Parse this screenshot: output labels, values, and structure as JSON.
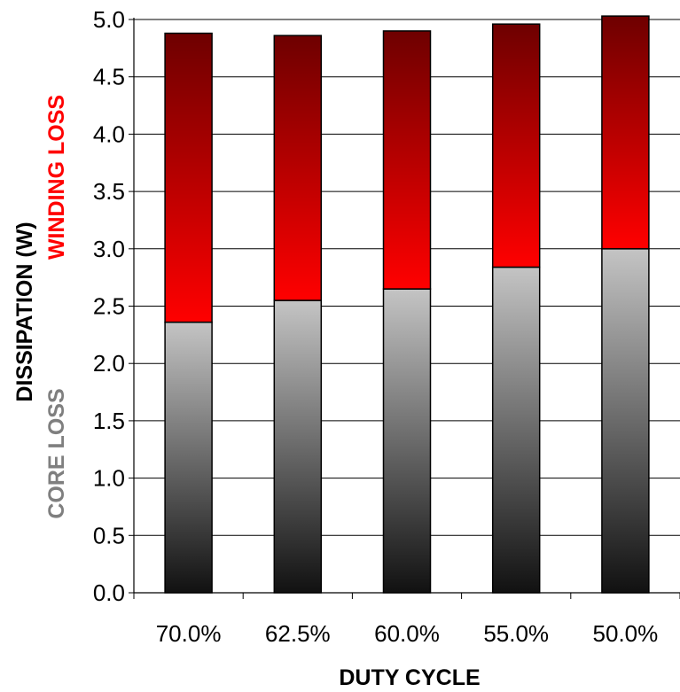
{
  "chart_data": {
    "type": "bar",
    "stacked": true,
    "categories": [
      "70.0%",
      "62.5%",
      "60.0%",
      "55.0%",
      "50.0%"
    ],
    "series": [
      {
        "name": "CORE LOSS",
        "values": [
          2.36,
          2.55,
          2.65,
          2.84,
          3.0
        ]
      },
      {
        "name": "WINDING LOSS",
        "values": [
          2.52,
          2.31,
          2.25,
          2.12,
          2.03
        ]
      }
    ],
    "xlabel": "DUTY CYCLE",
    "ylabel": "DISSIPATION (W)",
    "ylim": [
      0,
      5
    ],
    "yticks": [
      "0.0",
      "0.5",
      "1.0",
      "1.5",
      "2.0",
      "2.5",
      "3.0",
      "3.5",
      "4.0",
      "4.5",
      "5.0"
    ],
    "grid": true,
    "legend": "left (rotated, colored text beside y-axis label)",
    "colors": {
      "core_top": "#c4c4c4",
      "core_bottom": "#111111",
      "winding_top": "#6e0000",
      "winding_bottom": "#ff0000",
      "core_label": "#7f7f7f",
      "winding_label": "#ff0000"
    }
  }
}
